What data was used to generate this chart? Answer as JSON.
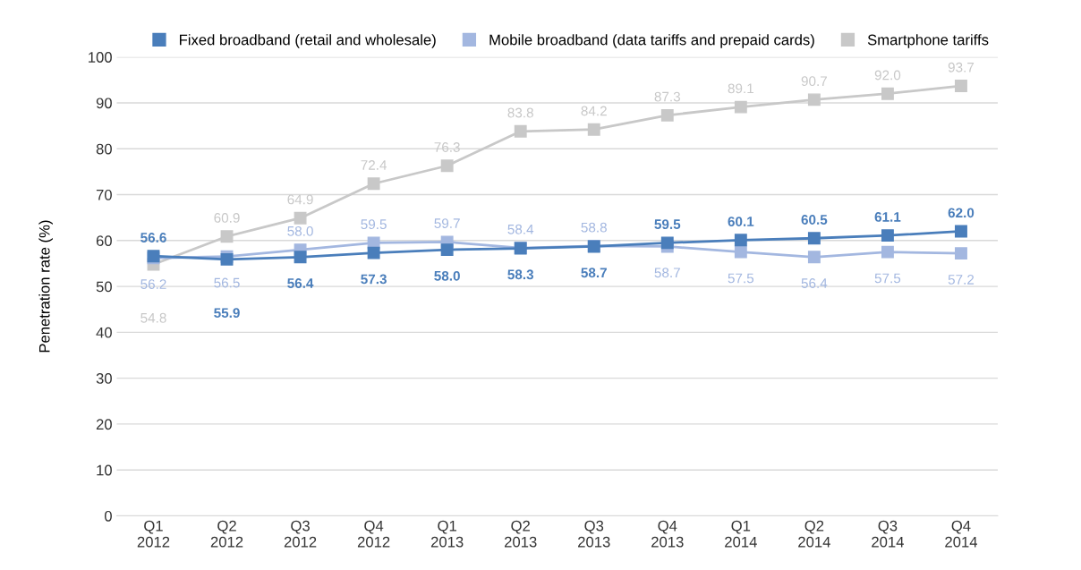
{
  "chart_data": {
    "type": "line",
    "ylabel": "Penetration rate (%)",
    "categories": [
      "Q1\n2012",
      "Q2\n2012",
      "Q3\n2012",
      "Q4\n2012",
      "Q1\n2013",
      "Q2\n2013",
      "Q3\n2013",
      "Q4\n2013",
      "Q1\n2014",
      "Q2\n2014",
      "Q3\n2014",
      "Q4\n2014"
    ],
    "series": [
      {
        "name": "Fixed broadband (retail and wholesale)",
        "color": "#4a7ebb",
        "values": [
          56.6,
          55.9,
          56.4,
          57.3,
          58.0,
          58.3,
          58.7,
          59.5,
          60.1,
          60.5,
          61.1,
          62.0
        ],
        "value_labels": [
          "56.6",
          "55.9",
          "56.4",
          "57.3",
          "58.0",
          "58.3",
          "58.7",
          "59.5",
          "60.1",
          "60.5",
          "61.1",
          "62.0"
        ]
      },
      {
        "name": "Mobile broadband (data tariffs and prepaid cards)",
        "color": "#a3b7e0",
        "values": [
          56.2,
          56.5,
          58.0,
          59.5,
          59.7,
          58.4,
          58.8,
          58.7,
          57.5,
          56.4,
          57.5,
          57.2
        ],
        "value_labels": [
          "56.2",
          "56.5",
          "58.0",
          "59.5",
          "59.7",
          "58.4",
          "58.8",
          "58.7",
          "57.5",
          "56.4",
          "57.5",
          "57.2"
        ]
      },
      {
        "name": "Smartphone tariffs",
        "color": "#c8c8c8",
        "values": [
          54.8,
          60.9,
          64.9,
          72.4,
          76.3,
          83.8,
          84.2,
          87.3,
          89.1,
          90.7,
          92.0,
          93.7
        ],
        "value_labels": [
          "54.8",
          "60.9",
          "64.9",
          "72.4",
          "76.3",
          "83.8",
          "84.2",
          "87.3",
          "89.1",
          "90.7",
          "92.0",
          "93.7"
        ]
      }
    ],
    "ylim": [
      0,
      100
    ],
    "yticks": [
      0,
      10,
      20,
      30,
      40,
      50,
      60,
      70,
      80,
      90,
      100
    ],
    "grid": "y",
    "legend": "top right",
    "marker": "square",
    "line_style": "solid"
  }
}
